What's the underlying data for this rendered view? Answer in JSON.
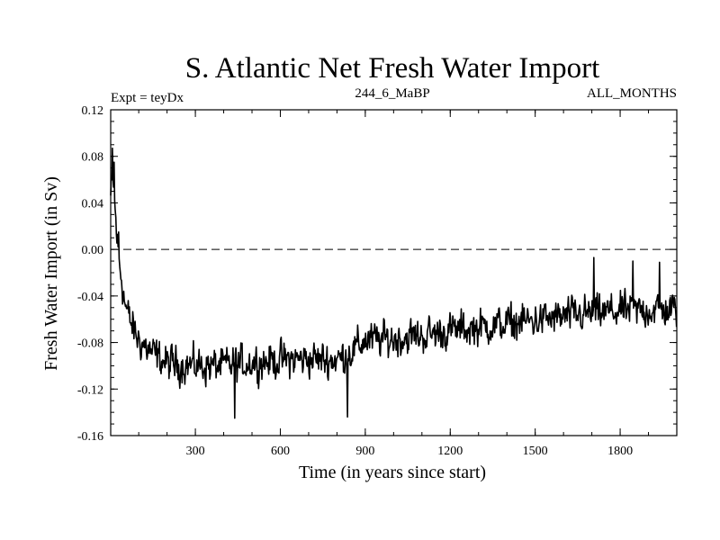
{
  "chart_data": {
    "type": "line",
    "title": "S. Atlantic Net Fresh Water Import",
    "subtitle_left": "Expt = teyDx",
    "subtitle_center": "244_6_MaBP",
    "subtitle_right": "ALL_MONTHS",
    "xlabel": "Time (in years since start)",
    "ylabel": "Fresh Water Import (in Sv)",
    "xlim": [
      1,
      2000
    ],
    "ylim": [
      -0.16,
      0.12
    ],
    "xticks": [
      300,
      600,
      900,
      1200,
      1500,
      1800
    ],
    "xtick_labels": [
      "300",
      "600",
      "900",
      "1200",
      "1500",
      "1800"
    ],
    "yticks": [
      0.12,
      0.08,
      0.04,
      0.0,
      -0.04,
      -0.08,
      -0.12,
      -0.16
    ],
    "ytick_labels": [
      "0.12",
      "0.08",
      "0.04",
      "0.00",
      "-0.04",
      "-0.08",
      "-0.12",
      "-0.16"
    ],
    "reference_line": {
      "y": 0.0,
      "style": "dashed"
    },
    "series": [
      {
        "name": "fresh water import",
        "trend": {
          "x": [
            1,
            10,
            20,
            30,
            40,
            50,
            60,
            80,
            100,
            150,
            200,
            300,
            400,
            500,
            600,
            700,
            800,
            850,
            900,
            1000,
            1100,
            1200,
            1300,
            1400,
            1500,
            1600,
            1700,
            1800,
            1900,
            2000
          ],
          "y": [
            0.045,
            0.06,
            0.02,
            -0.01,
            -0.025,
            -0.045,
            -0.055,
            -0.068,
            -0.078,
            -0.09,
            -0.098,
            -0.1,
            -0.1,
            -0.097,
            -0.095,
            -0.094,
            -0.095,
            -0.088,
            -0.078,
            -0.077,
            -0.074,
            -0.07,
            -0.067,
            -0.064,
            -0.061,
            -0.058,
            -0.055,
            -0.053,
            -0.052,
            -0.052
          ]
        },
        "noise_amplitude": 0.011,
        "extremes": [
          {
            "x": 8,
            "y": 0.087
          },
          {
            "x": 14,
            "y": 0.075
          },
          {
            "x": 30,
            "y": 0.015
          },
          {
            "x": 440,
            "y": -0.145
          },
          {
            "x": 838,
            "y": -0.144
          },
          {
            "x": 1707,
            "y": -0.007
          },
          {
            "x": 1845,
            "y": -0.01
          },
          {
            "x": 1939,
            "y": -0.011
          }
        ]
      }
    ]
  }
}
